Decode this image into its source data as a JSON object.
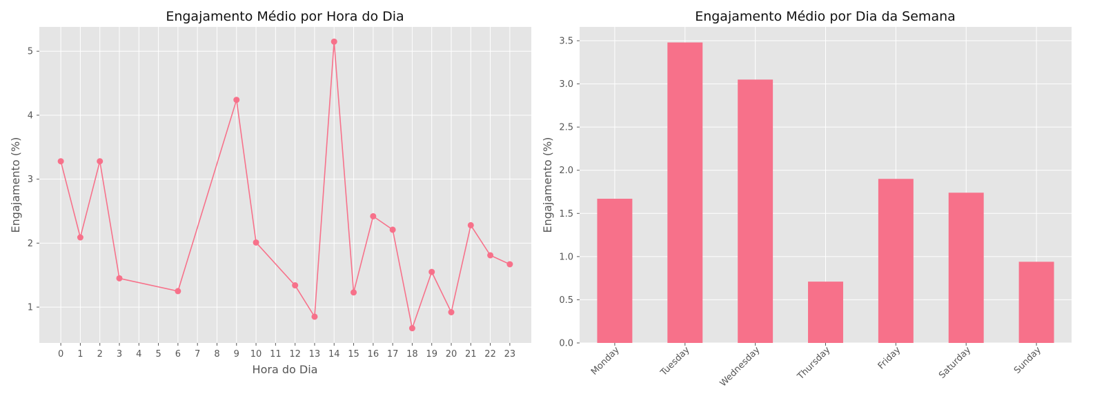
{
  "colors": {
    "series": "#f7718a",
    "plot_background": "#e5e5e5",
    "grid": "#ffffff"
  },
  "chart_data": [
    {
      "type": "line",
      "title": "Engajamento Médio por Hora do Dia",
      "xlabel": "Hora do Dia",
      "ylabel": "Engajamento (%)",
      "grid": true,
      "marker": "circle",
      "xlim": [
        -1.1,
        24.1
      ],
      "ylim": [
        0.44,
        5.38
      ],
      "xticks": [
        0,
        1,
        2,
        3,
        4,
        5,
        6,
        7,
        8,
        9,
        10,
        11,
        12,
        13,
        14,
        15,
        16,
        17,
        18,
        19,
        20,
        21,
        22,
        23
      ],
      "yticks": [
        1,
        2,
        3,
        4,
        5
      ],
      "x": [
        0,
        1,
        2,
        3,
        6,
        9,
        10,
        12,
        13,
        14,
        15,
        16,
        17,
        18,
        19,
        20,
        21,
        22,
        23
      ],
      "y": [
        3.28,
        2.09,
        3.28,
        1.45,
        1.25,
        4.24,
        2.01,
        1.34,
        0.85,
        5.15,
        1.23,
        2.42,
        2.21,
        0.67,
        1.55,
        0.92,
        2.28,
        1.81,
        1.67
      ]
    },
    {
      "type": "bar",
      "title": "Engajamento Médio por Dia da Semana",
      "xlabel": "",
      "ylabel": "Engajamento (%)",
      "grid": true,
      "ylim": [
        0,
        3.66
      ],
      "yticks": [
        0.0,
        0.5,
        1.0,
        1.5,
        2.0,
        2.5,
        3.0,
        3.5
      ],
      "ytick_labels": [
        "0.0",
        "0.5",
        "1.0",
        "1.5",
        "2.0",
        "2.5",
        "3.0",
        "3.5"
      ],
      "xtick_rotation": 45,
      "categories": [
        "Monday",
        "Tuesday",
        "Wednesday",
        "Thursday",
        "Friday",
        "Saturday",
        "Sunday"
      ],
      "values": [
        1.67,
        3.48,
        3.05,
        0.71,
        1.9,
        1.74,
        0.94
      ]
    }
  ]
}
